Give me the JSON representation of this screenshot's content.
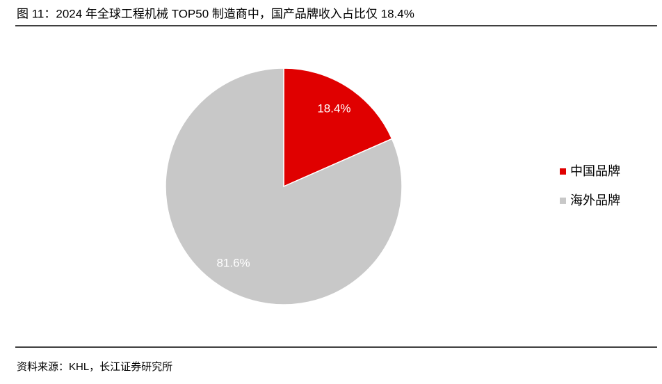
{
  "chart_data": {
    "type": "pie",
    "title": "图 11：2024 年全球工程机械 TOP50 制造商中，国产品牌收入占比仅 18.4%",
    "source": "资料来源：KHL，长江证券研究所",
    "categories": [
      "中国品牌",
      "海外品牌"
    ],
    "values": [
      18.4,
      81.6
    ],
    "value_labels": [
      "18.4%",
      "81.6%"
    ],
    "colors": [
      "#e00000",
      "#c8c8c8"
    ],
    "legend": "right"
  }
}
